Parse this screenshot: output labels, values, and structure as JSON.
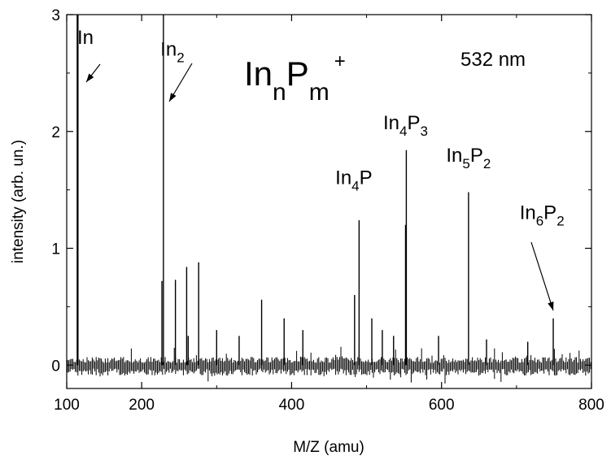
{
  "chart_data": {
    "type": "line",
    "title": "",
    "xlabel": "M/Z (amu)",
    "ylabel": "intensity (arb. un.)",
    "xlim": [
      100,
      800
    ],
    "ylim": [
      -0.2,
      3.0
    ],
    "x_ticks": [
      {
        "value": 100,
        "label": "100"
      },
      {
        "value": 200,
        "label": "200"
      },
      {
        "value": 400,
        "label": "400"
      },
      {
        "value": 600,
        "label": "600"
      },
      {
        "value": 800,
        "label": "800"
      }
    ],
    "y_ticks": [
      {
        "value": 0,
        "label": "0"
      },
      {
        "value": 1,
        "label": "1"
      },
      {
        "value": 2,
        "label": "2"
      },
      {
        "value": 3,
        "label": "3"
      }
    ],
    "grid": false,
    "legend": "none",
    "series": [
      {
        "peaks": [
          {
            "x": 114,
            "y": 3.0
          },
          {
            "x": 115,
            "y": 3.0
          },
          {
            "x": 229,
            "y": 3.0
          },
          {
            "x": 227,
            "y": 0.72
          },
          {
            "x": 245,
            "y": 0.73
          },
          {
            "x": 260,
            "y": 0.84
          },
          {
            "x": 276,
            "y": 0.88
          },
          {
            "x": 262,
            "y": 0.25
          },
          {
            "x": 300,
            "y": 0.3
          },
          {
            "x": 330,
            "y": 0.25
          },
          {
            "x": 360,
            "y": 0.56
          },
          {
            "x": 390,
            "y": 0.4
          },
          {
            "x": 415,
            "y": 0.3
          },
          {
            "x": 484,
            "y": 0.6
          },
          {
            "x": 490,
            "y": 1.24
          },
          {
            "x": 507,
            "y": 0.4
          },
          {
            "x": 521,
            "y": 0.3
          },
          {
            "x": 536,
            "y": 0.25
          },
          {
            "x": 552,
            "y": 1.2
          },
          {
            "x": 553,
            "y": 1.84
          },
          {
            "x": 596,
            "y": 0.25
          },
          {
            "x": 636,
            "y": 1.48
          },
          {
            "x": 660,
            "y": 0.22
          },
          {
            "x": 715,
            "y": 0.2
          },
          {
            "x": 749,
            "y": 0.4
          }
        ]
      }
    ],
    "annotations": [
      {
        "text": "In",
        "sub": "",
        "x": 125,
        "y": 2.75
      },
      {
        "text": "In",
        "sub": "2",
        "x": 241,
        "y": 2.65
      },
      {
        "text": "In",
        "sub": "4",
        "sub2": "P",
        "x": 483,
        "y": 1.55
      },
      {
        "text": "In",
        "sub": "4",
        "sub2": "P",
        "sub3": "3",
        "x": 552,
        "y": 2.02
      },
      {
        "text": "In",
        "sub": "5",
        "sub2": "P",
        "sub3": "2",
        "x": 636,
        "y": 1.74
      },
      {
        "text": "In",
        "sub": "6",
        "sub2": "P",
        "sub3": "2",
        "x": 734,
        "y": 1.25
      }
    ],
    "heading": {
      "main": "In",
      "sub1": "n",
      "mid": "P",
      "sub2": "m",
      "sup": "+"
    },
    "wavelength_label": "532 nm"
  }
}
